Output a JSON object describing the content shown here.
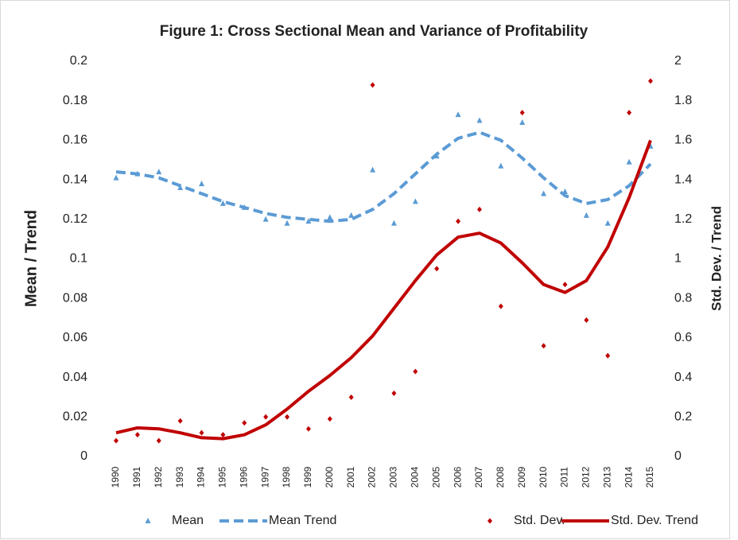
{
  "chart_data": {
    "type": "combo",
    "title": "Figure 1: Cross Sectional Mean and Variance of Profitability",
    "ylabel": "Mean / Trend",
    "y2label": "Std. Dev. / Trend",
    "categories": [
      "1990",
      "1991",
      "1992",
      "1993",
      "1994",
      "1995",
      "1996",
      "1997",
      "1998",
      "1999",
      "2000",
      "2001",
      "2002",
      "2003",
      "2004",
      "2005",
      "2006",
      "2007",
      "2008",
      "2009",
      "2010",
      "2011",
      "2012",
      "2013",
      "2014",
      "2015"
    ],
    "ylim": [
      0,
      0.2
    ],
    "yticks": [
      0,
      0.02,
      0.04,
      0.06,
      0.08,
      0.1,
      0.12,
      0.14,
      0.16,
      0.18,
      0.2
    ],
    "y2lim": [
      0,
      2
    ],
    "y2ticks": [
      0,
      0.2,
      0.4,
      0.6,
      0.8,
      1,
      1.2,
      1.4,
      1.6,
      1.8,
      2
    ],
    "legend": "bottom",
    "series": [
      {
        "name": "Mean",
        "color": "#5b9bd5",
        "marker": "triangle",
        "values": [
          0.141,
          0.143,
          0.144,
          0.136,
          0.138,
          0.128,
          0.126,
          0.12,
          0.118,
          0.119,
          0.121,
          0.122,
          0.145,
          0.118,
          0.129,
          0.152,
          0.173,
          0.17,
          0.147,
          0.169,
          0.133,
          0.134,
          0.122,
          0.118,
          0.149,
          0.157
        ]
      },
      {
        "name": "Mean Trend",
        "color": "#5b9bd5",
        "line": "dashed",
        "values": [
          0.144,
          0.143,
          0.141,
          0.137,
          0.133,
          0.129,
          0.126,
          0.123,
          0.121,
          0.12,
          0.119,
          0.12,
          0.125,
          0.133,
          0.143,
          0.153,
          0.161,
          0.164,
          0.16,
          0.151,
          0.141,
          0.132,
          0.128,
          0.13,
          0.137,
          0.148
        ]
      },
      {
        "name": "Std. Dev.",
        "color": "#c00000",
        "marker": "diamond",
        "axis": "y2",
        "values": [
          0.08,
          0.11,
          0.08,
          0.18,
          0.12,
          0.11,
          0.17,
          0.2,
          0.2,
          0.14,
          0.19,
          0.3,
          1.88,
          0.32,
          0.43,
          0.95,
          1.19,
          1.25,
          0.76,
          1.74,
          0.56,
          0.87,
          0.69,
          0.51,
          1.74,
          1.9
        ]
      },
      {
        "name": "Std. Dev. Trend",
        "color": "#c00000",
        "line": "solid",
        "axis": "y2",
        "values": [
          0.12,
          0.145,
          0.14,
          0.12,
          0.095,
          0.09,
          0.11,
          0.16,
          0.24,
          0.33,
          0.41,
          0.5,
          0.61,
          0.75,
          0.89,
          1.02,
          1.11,
          1.13,
          1.08,
          0.98,
          0.87,
          0.83,
          0.89,
          1.06,
          1.31,
          1.6
        ]
      }
    ]
  }
}
